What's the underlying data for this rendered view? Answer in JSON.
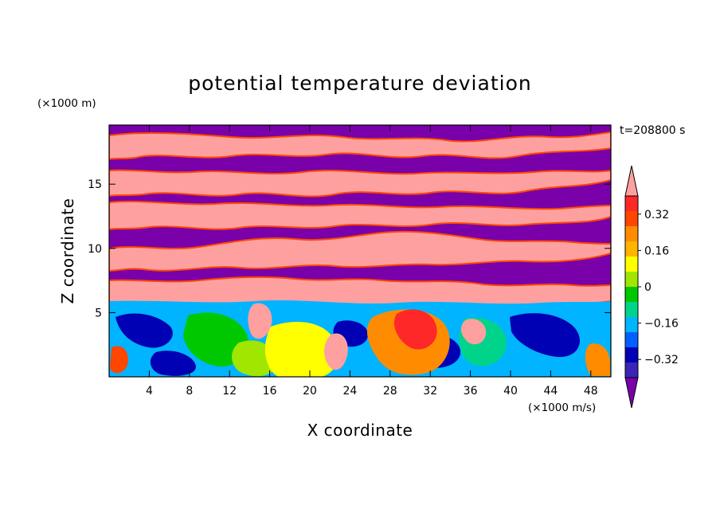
{
  "chart_data": {
    "type": "heatmap",
    "title": "potential temperature deviation",
    "xlabel": "X coordinate",
    "ylabel": "Z coordinate",
    "x_unit": "(×1000 m/s)",
    "y_unit": "(×1000 m)",
    "time_label": "t=208800 s",
    "xlim": [
      0,
      50
    ],
    "ylim": [
      0,
      19.6
    ],
    "x_ticks": [
      4,
      8,
      12,
      16,
      20,
      24,
      28,
      32,
      36,
      40,
      44,
      48
    ],
    "x_tick_labels": [
      "4",
      "8",
      "12",
      "16",
      "20",
      "24",
      "28",
      "32",
      "36",
      "40",
      "44",
      "48"
    ],
    "y_ticks": [
      5,
      10,
      15
    ],
    "y_tick_labels": [
      "5",
      "10",
      "15"
    ],
    "colorbar": {
      "colors": [
        "#7a00aa",
        "#3b24b8",
        "#0000b4",
        "#0060ff",
        "#00b4ff",
        "#00d48a",
        "#00c800",
        "#a0e600",
        "#ffff00",
        "#ffb400",
        "#ff8c00",
        "#ff4600",
        "#ff2828",
        "#ffa0a0"
      ],
      "tick_values": [
        0.32,
        0.16,
        0,
        -0.16,
        -0.32
      ],
      "tick_labels": [
        "0.32",
        "0.16",
        "0",
        "−0.16",
        "−0.32"
      ],
      "range": [
        -0.4,
        0.4
      ],
      "extend": "both"
    },
    "field_description": "alternating horizontal layers of high (pink) and low (purple) anomaly above ~6 km; turbulent mixed multicolour field below"
  }
}
